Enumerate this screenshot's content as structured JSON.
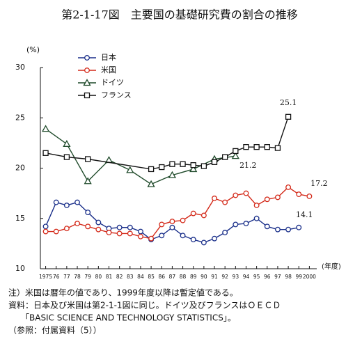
{
  "chart_data": {
    "type": "line",
    "title": "第2-1-17図　主要国の基礎研究費の割合の推移",
    "y_label": "(%)",
    "x_label": "(年度)",
    "xlim": [
      1974.5,
      2000.7
    ],
    "ylim": [
      10,
      30
    ],
    "yticks": [
      10,
      15,
      20,
      25,
      30
    ],
    "xticks": [
      {
        "value": 1975,
        "label": "1975"
      },
      {
        "value": 1976,
        "label": "76"
      },
      {
        "value": 1977,
        "label": "77"
      },
      {
        "value": 1978,
        "label": "78"
      },
      {
        "value": 1979,
        "label": "79"
      },
      {
        "value": 1980,
        "label": "80"
      },
      {
        "value": 1981,
        "label": "81"
      },
      {
        "value": 1982,
        "label": "82"
      },
      {
        "value": 1983,
        "label": "83"
      },
      {
        "value": 1984,
        "label": "84"
      },
      {
        "value": 1985,
        "label": "85"
      },
      {
        "value": 1986,
        "label": "86"
      },
      {
        "value": 1987,
        "label": "87"
      },
      {
        "value": 1988,
        "label": "88"
      },
      {
        "value": 1989,
        "label": "89"
      },
      {
        "value": 1990,
        "label": "90"
      },
      {
        "value": 1991,
        "label": "91"
      },
      {
        "value": 1992,
        "label": "92"
      },
      {
        "value": 1993,
        "label": "93"
      },
      {
        "value": 1994,
        "label": "94"
      },
      {
        "value": 1995,
        "label": "95"
      },
      {
        "value": 1996,
        "label": "96"
      },
      {
        "value": 1997,
        "label": "97"
      },
      {
        "value": 1998,
        "label": "98"
      },
      {
        "value": 1999,
        "label": "99"
      },
      2000
    ],
    "series": [
      {
        "name": "日本",
        "color": "#1a2f8a",
        "marker": "circle",
        "x": [
          1975,
          1976,
          1977,
          1978,
          1979,
          1980,
          1981,
          1982,
          1983,
          1984,
          1985,
          1986,
          1987,
          1988,
          1989,
          1990,
          1991,
          1992,
          1993,
          1994,
          1995,
          1996,
          1997,
          1998,
          1999
        ],
        "values": [
          14.2,
          16.6,
          16.3,
          16.6,
          15.6,
          14.6,
          14.0,
          14.1,
          14.1,
          13.7,
          12.9,
          13.3,
          14.1,
          13.3,
          12.9,
          12.6,
          13.0,
          13.6,
          14.4,
          14.5,
          15.0,
          14.2,
          13.9,
          13.9,
          14.1
        ],
        "value_labels": [
          null,
          null,
          null,
          null,
          null,
          null,
          null,
          null,
          null,
          null,
          null,
          null,
          null,
          null,
          null,
          null,
          null,
          null,
          null,
          null,
          null,
          null,
          null,
          null,
          "14.1"
        ]
      },
      {
        "name": "米国",
        "color": "#d42a1a",
        "marker": "circle",
        "x": [
          1975,
          1976,
          1977,
          1978,
          1979,
          1980,
          1981,
          1982,
          1983,
          1984,
          1985,
          1986,
          1987,
          1988,
          1989,
          1990,
          1991,
          1992,
          1993,
          1994,
          1995,
          1996,
          1997,
          1998,
          1999,
          2000
        ],
        "values": [
          13.7,
          13.7,
          14.0,
          14.5,
          14.2,
          13.9,
          13.6,
          13.5,
          13.5,
          13.2,
          13.0,
          14.4,
          14.7,
          14.8,
          15.5,
          15.3,
          17.0,
          16.6,
          17.3,
          17.5,
          16.3,
          16.9,
          17.1,
          18.1,
          17.4,
          17.2
        ],
        "value_labels": [
          null,
          null,
          null,
          null,
          null,
          null,
          null,
          null,
          null,
          null,
          null,
          null,
          null,
          null,
          null,
          null,
          null,
          null,
          null,
          null,
          null,
          null,
          null,
          null,
          null,
          "17.2"
        ]
      },
      {
        "name": "ドイツ",
        "color": "#1f4a2a",
        "marker": "triangle",
        "x": [
          1975,
          1977,
          1979,
          1981,
          1983,
          1985,
          1987,
          1989,
          1991,
          1993
        ],
        "values": [
          23.9,
          22.4,
          18.7,
          20.8,
          19.8,
          18.4,
          19.3,
          19.9,
          20.9,
          21.2
        ],
        "value_labels": [
          null,
          null,
          null,
          null,
          null,
          null,
          null,
          null,
          null,
          "21.2"
        ]
      },
      {
        "name": "フランス",
        "color": "#111111",
        "marker": "square",
        "x": [
          1975,
          1977,
          1979,
          1985,
          1986,
          1987,
          1988,
          1989,
          1990,
          1991,
          1992,
          1993,
          1994,
          1995,
          1996,
          1997,
          1998
        ],
        "values": [
          21.5,
          21.1,
          20.9,
          19.9,
          20.1,
          20.4,
          20.4,
          20.3,
          20.2,
          20.6,
          21.1,
          21.7,
          22.1,
          22.1,
          22.1,
          22.0,
          25.1
        ],
        "value_labels": [
          null,
          null,
          null,
          null,
          null,
          null,
          null,
          null,
          null,
          null,
          null,
          null,
          null,
          null,
          null,
          null,
          "25.1"
        ]
      }
    ],
    "notes": [
      "注）米国は暦年の値であり、1999年度以降は暫定値である。",
      "資料：日本及び米国は第2-1-1図に同じ。ドイツ及びフランスはＯＥＣＤ",
      "　　「BASIC SCIENCE AND TECHNOLOGY STATISTICS」。",
      "（参照：付属資料（5））"
    ]
  }
}
